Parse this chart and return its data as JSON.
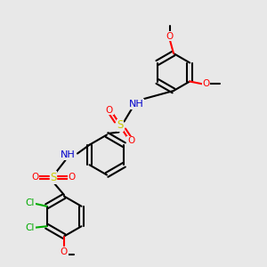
{
  "bg_color": "#e8e8e8",
  "bond_color": "#000000",
  "atom_colors": {
    "N": "#0000cc",
    "O": "#ff0000",
    "S": "#cccc00",
    "Cl": "#00aa00",
    "C": "#000000"
  },
  "line_width": 1.5,
  "font_size": 7.5
}
